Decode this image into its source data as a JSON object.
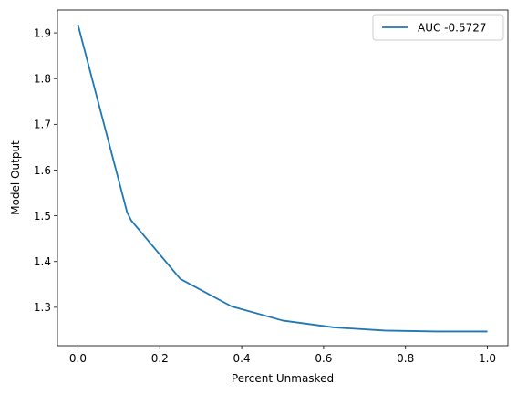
{
  "chart_data": {
    "type": "line",
    "title": "",
    "xlabel": "Percent Unmasked",
    "ylabel": "Model Output",
    "xlim": [
      -0.05,
      1.05
    ],
    "ylim": [
      1.216,
      1.95
    ],
    "xticks": [
      0.0,
      0.2,
      0.4,
      0.6,
      0.8,
      1.0
    ],
    "xtick_labels": [
      "0.0",
      "0.2",
      "0.4",
      "0.6",
      "0.8",
      "1.0"
    ],
    "yticks": [
      1.3,
      1.4,
      1.5,
      1.6,
      1.7,
      1.8,
      1.9
    ],
    "ytick_labels": [
      "1.3",
      "1.4",
      "1.5",
      "1.6",
      "1.7",
      "1.8",
      "1.9"
    ],
    "grid": false,
    "legend_position": "top-right",
    "series": [
      {
        "name": "AUC -0.5727",
        "color": "#1f77b4",
        "x": [
          0.0,
          0.12,
          0.13,
          0.25,
          0.375,
          0.5,
          0.625,
          0.75,
          0.875,
          1.0
        ],
        "y": [
          1.918,
          1.508,
          1.49,
          1.362,
          1.302,
          1.271,
          1.256,
          1.249,
          1.247,
          1.247
        ]
      }
    ]
  }
}
